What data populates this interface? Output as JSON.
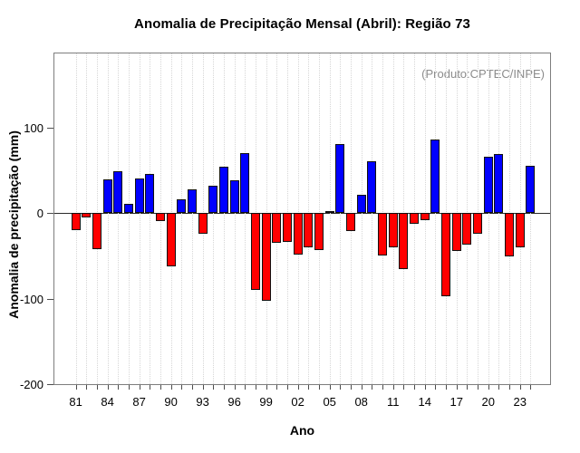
{
  "chart_data": {
    "type": "bar",
    "title": "Anomalia de Precipitação Mensal (Abril): Região 73",
    "xlabel": "Ano",
    "ylabel": "Anomalia de precipitação (mm)",
    "annotation": "(Produto:CPTEC/INPE)",
    "ylim": [
      -200,
      187
    ],
    "yticks": [
      100,
      0,
      -100,
      -200
    ],
    "x_label_every": 3,
    "grid": "vertical dotted line per year",
    "legend": "none",
    "bar_colors": {
      "positive": "#0000ff",
      "negative": "#ff0000"
    },
    "years": [
      "81",
      "82",
      "83",
      "84",
      "85",
      "86",
      "87",
      "88",
      "89",
      "90",
      "91",
      "92",
      "93",
      "94",
      "95",
      "96",
      "97",
      "98",
      "99",
      "00",
      "01",
      "02",
      "03",
      "04",
      "05",
      "06",
      "07",
      "08",
      "09",
      "10",
      "11",
      "12",
      "13",
      "14",
      "15",
      "16",
      "17",
      "18",
      "19",
      "20",
      "21",
      "22",
      "23",
      "24"
    ],
    "values": [
      -20,
      -5,
      -42,
      40,
      49,
      11,
      41,
      46,
      -9,
      -62,
      16,
      28,
      -24,
      32,
      54,
      38,
      70,
      -90,
      -103,
      -35,
      -34,
      -48,
      -40,
      -43,
      2,
      81,
      -21,
      22,
      61,
      -49,
      -40,
      -65,
      -12,
      -8,
      86,
      -97,
      -44,
      -37,
      -24,
      66,
      69,
      -51,
      -40,
      55
    ]
  }
}
